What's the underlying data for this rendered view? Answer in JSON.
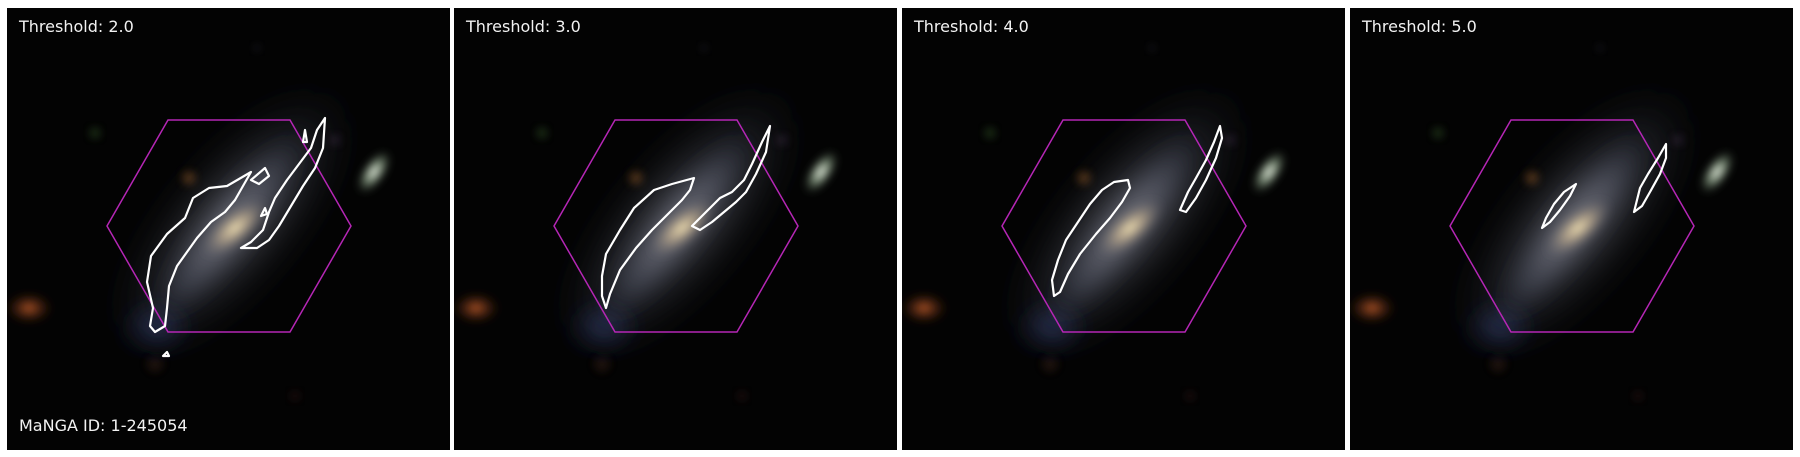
{
  "figure": {
    "panels": [
      {
        "threshold_label": "Threshold: 2.0",
        "caption": "MaNGA ID: 1-245054"
      },
      {
        "threshold_label": "Threshold: 3.0",
        "caption": ""
      },
      {
        "threshold_label": "Threshold: 4.0",
        "caption": ""
      },
      {
        "threshold_label": "Threshold: 5.0",
        "caption": ""
      }
    ],
    "colors": {
      "background": "#030303",
      "hexagon": "#b526b5",
      "contour": "#ffffff",
      "galaxy_core": "#e8d6a8",
      "companion": "#dfe8d8",
      "orange_blob": "#c2582a"
    }
  }
}
